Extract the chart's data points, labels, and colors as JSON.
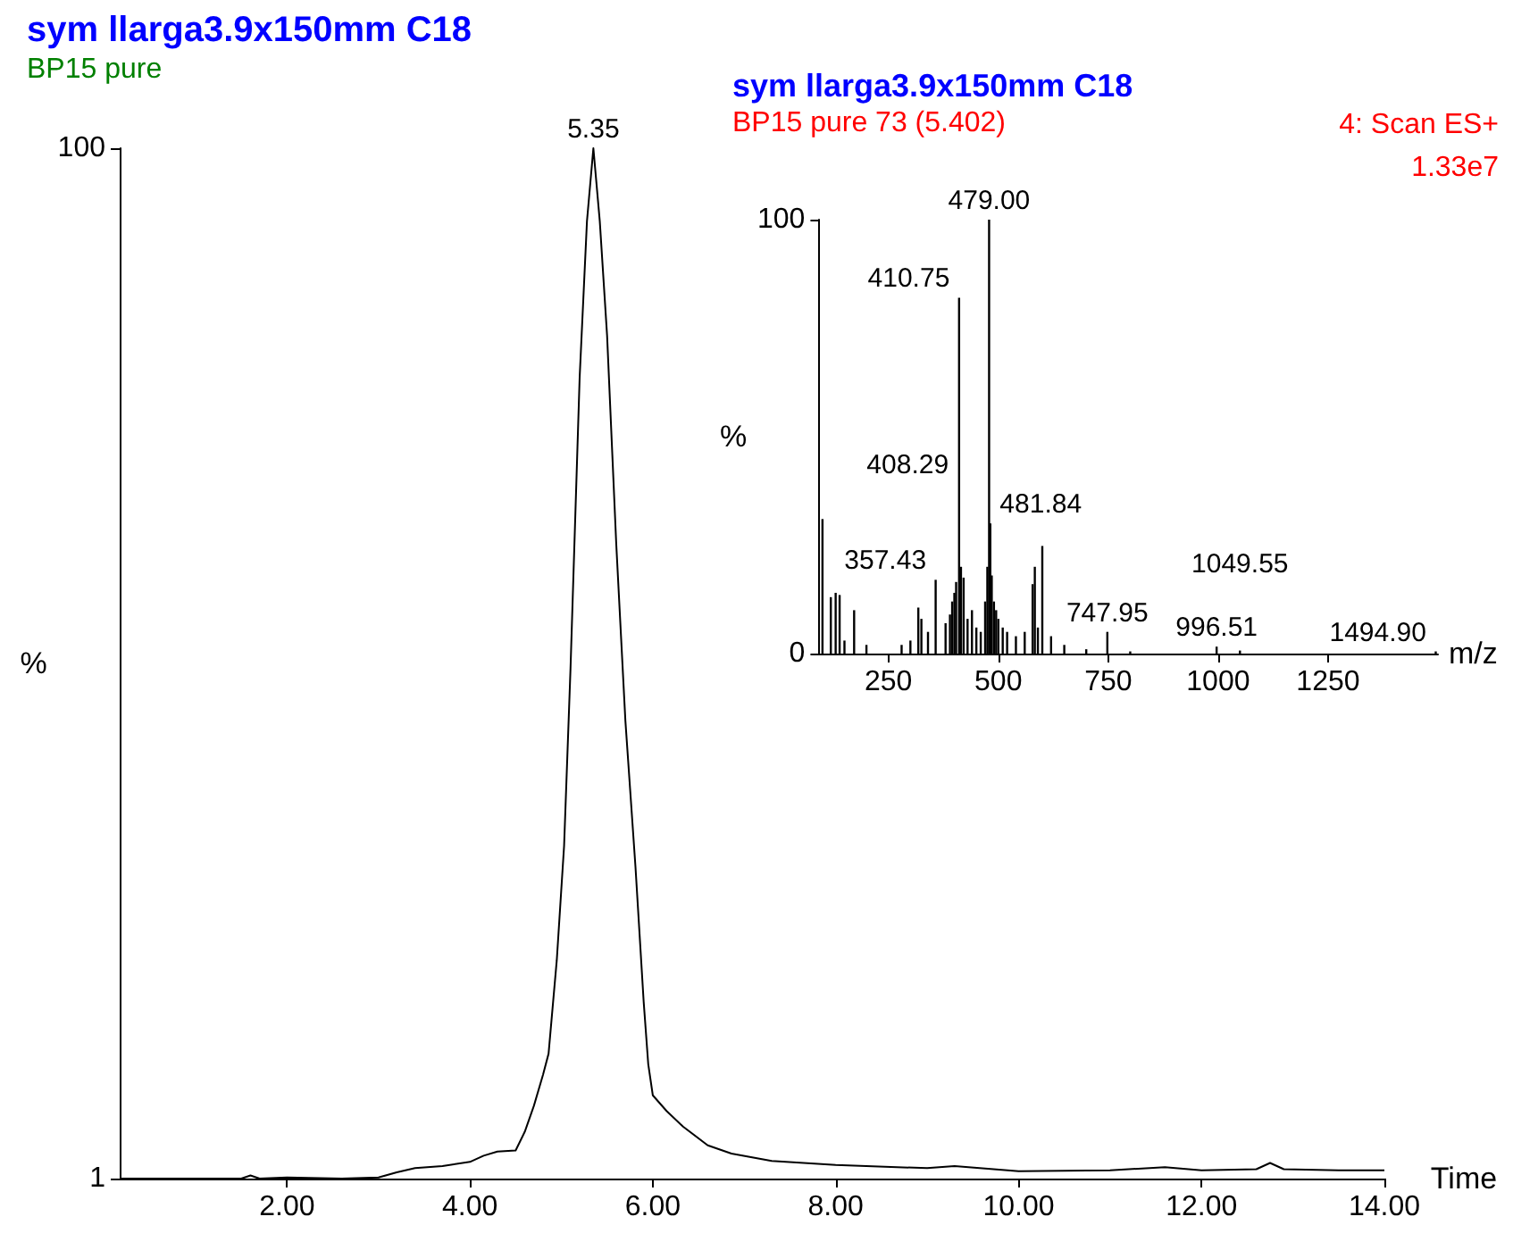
{
  "chart_data": [
    {
      "type": "line",
      "title": "sym llarga3.9x150mm C18",
      "subtitle": "BP15 pure",
      "xlabel": "Time",
      "ylabel": "%",
      "marker": "none",
      "xlim": [
        0.17,
        14
      ],
      "xticks": [
        {
          "value": 2,
          "label": "2.00"
        },
        {
          "value": 4,
          "label": "4.00"
        },
        {
          "value": 6,
          "label": "6.00"
        },
        {
          "value": 8,
          "label": "8.00"
        },
        {
          "value": 10,
          "label": "10.00"
        },
        {
          "value": 12,
          "label": "12.00"
        },
        {
          "value": 14,
          "label": "14.00"
        }
      ],
      "ylim": [
        1,
        100
      ],
      "yticks": [
        1,
        100
      ],
      "annotations": [
        {
          "text": "5.35",
          "x": 5.35,
          "y": 100
        }
      ],
      "series": [
        {
          "color": "#000000",
          "x": [
            0.17,
            1.0,
            1.5,
            1.6,
            1.7,
            2.0,
            2.6,
            3.0,
            3.2,
            3.4,
            3.7,
            4.0,
            4.15,
            4.3,
            4.5,
            4.6,
            4.7,
            4.8,
            4.86,
            4.95,
            5.03,
            5.1,
            5.2,
            5.28,
            5.35,
            5.42,
            5.5,
            5.6,
            5.7,
            5.81,
            5.9,
            5.95,
            6.0,
            6.15,
            6.33,
            6.6,
            6.86,
            7.3,
            8.0,
            9.0,
            9.3,
            10.0,
            11.0,
            11.6,
            12.0,
            12.6,
            12.75,
            12.9,
            13.5,
            14.0
          ],
          "values": [
            1.0,
            1.0,
            1.0,
            1.3,
            1.0,
            1.1,
            1.0,
            1.1,
            1.6,
            2.0,
            2.2,
            2.6,
            3.2,
            3.6,
            3.7,
            5.5,
            8,
            11,
            13,
            22,
            33,
            50,
            78,
            93,
            100,
            93,
            82,
            62,
            45,
            31,
            18,
            12,
            9,
            7.5,
            6,
            4.2,
            3.4,
            2.7,
            2.3,
            2.0,
            2.2,
            1.7,
            1.8,
            2.1,
            1.8,
            1.9,
            2.5,
            1.9,
            1.8,
            1.8
          ]
        }
      ]
    },
    {
      "type": "bar",
      "title": "sym llarga3.9x150mm C18",
      "subtitle": "BP15 pure 73 (5.402)",
      "xlabel": "m/z",
      "ylabel": "%",
      "xlim": [
        93,
        1500
      ],
      "xticks": [
        250,
        500,
        750,
        1000,
        1250
      ],
      "ylim": [
        0,
        100
      ],
      "yticks": [
        0,
        100
      ],
      "annotations": [
        "4: Scan ES+",
        "1.33e7",
        {
          "text": "479.00",
          "x": 479.0,
          "y": 100
        },
        {
          "text": "410.75",
          "x": 410.75,
          "y": 82
        },
        {
          "text": "408.29",
          "x": 408.29,
          "y": 39
        },
        {
          "text": "481.84",
          "x": 481.84,
          "y": 30
        },
        {
          "text": "357.43",
          "x": 357.43,
          "y": 17
        },
        {
          "text": "747.95",
          "x": 747.95,
          "y": 5
        },
        {
          "text": "996.51",
          "x": 996.51,
          "y": 1.6
        },
        {
          "text": "1049.55",
          "x": 1049.55,
          "y": 0.7
        },
        {
          "text": "1494.90",
          "x": 1494.9,
          "y": 0.5
        }
      ],
      "series": [
        {
          "color": "#000000",
          "x": [
            100,
            119,
            130,
            139,
            150,
            172,
            200,
            280,
            300,
            318,
            325,
            340,
            357.43,
            380,
            390,
            395,
            400,
            404,
            408.29,
            410.75,
            415,
            421,
            430,
            440,
            450,
            460,
            470,
            475,
            479.0,
            481.84,
            485,
            490,
            495,
            500,
            510,
            520,
            540,
            560,
            578,
            583,
            590,
            600,
            620,
            650,
            700,
            747.95,
            800,
            996.51,
            1049.55,
            1494.9
          ],
          "values": [
            31,
            13,
            14,
            13.5,
            3,
            10,
            2,
            2,
            3,
            10.6,
            8,
            5,
            17,
            7,
            9,
            12,
            14,
            16.5,
            null,
            82,
            20,
            17.5,
            8,
            10,
            6,
            5,
            12,
            20,
            100,
            30,
            18,
            12,
            10,
            8,
            6,
            5,
            4,
            5,
            16,
            20,
            6,
            24.8,
            4,
            2,
            1,
            5,
            0.5,
            1.6,
            0.7,
            0.5
          ]
        }
      ]
    }
  ]
}
